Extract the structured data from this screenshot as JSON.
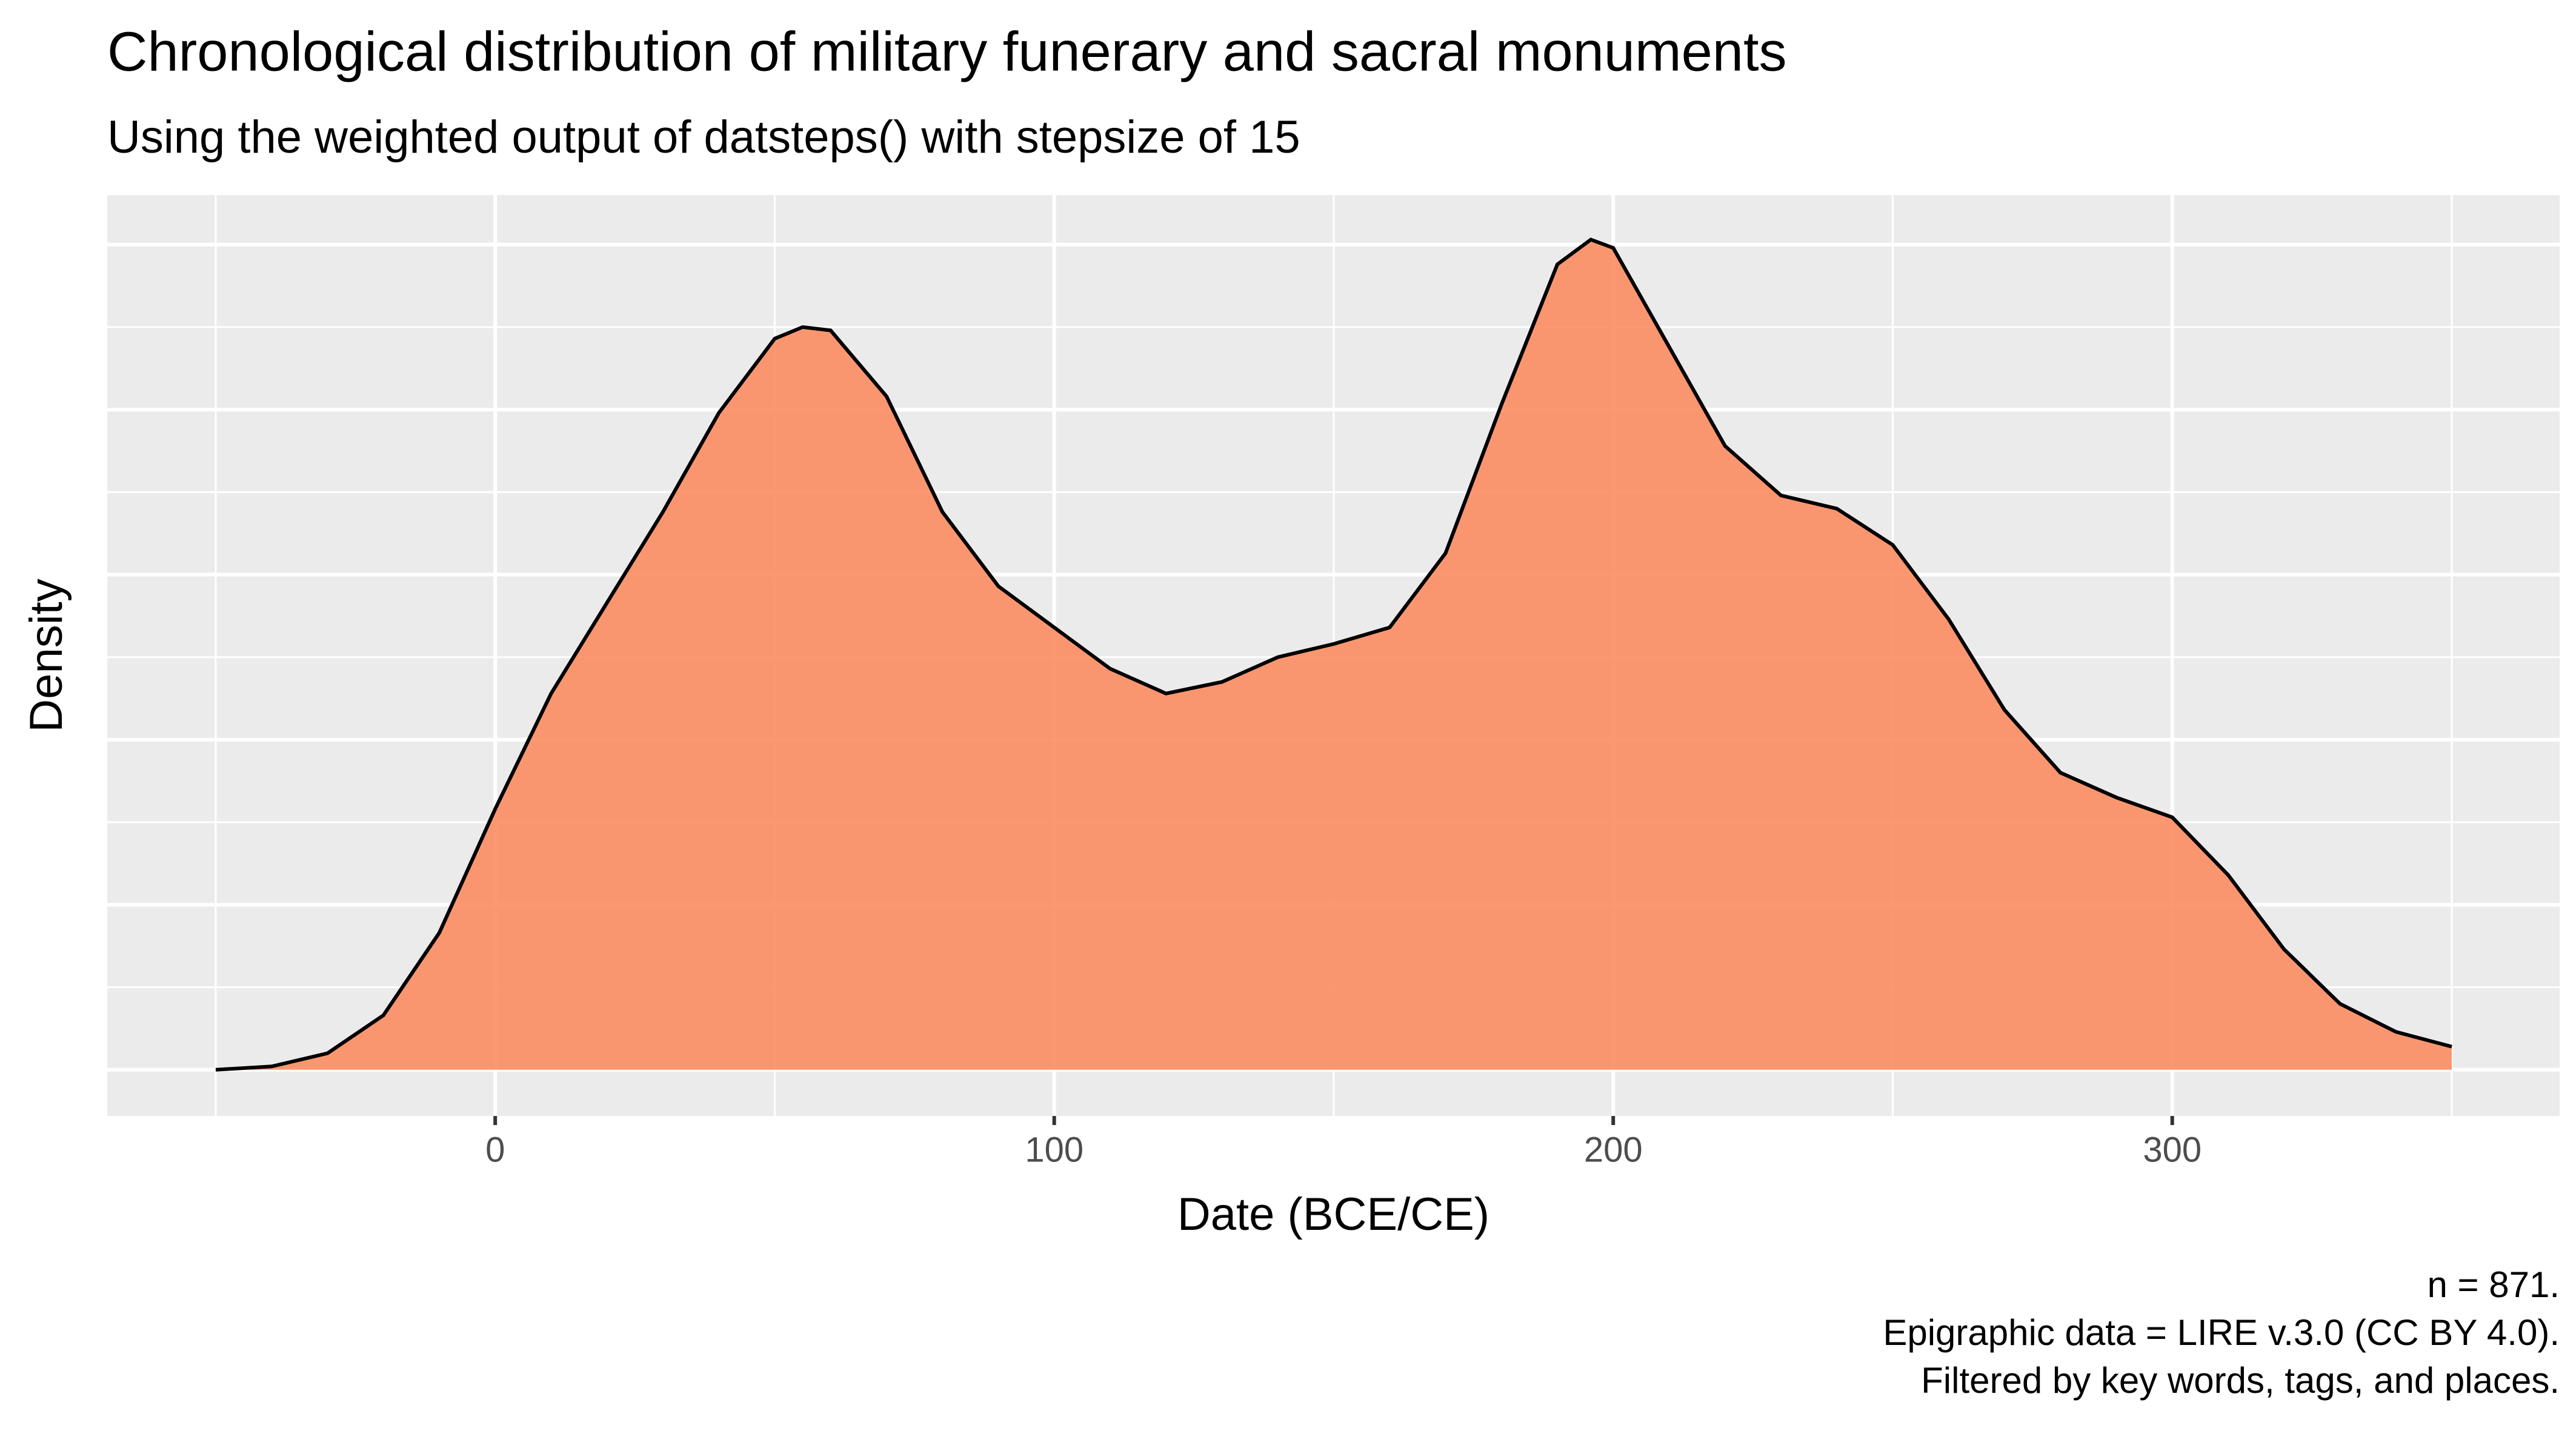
{
  "chart_data": {
    "type": "density",
    "title": "Chronological distribution of military funerary and sacral monuments",
    "subtitle": "Using the weighted output of datsteps() with stepsize of 15",
    "x_label": "Date (BCE/CE)",
    "y_label": "Density",
    "caption": [
      "n = 871.",
      "Epigraphic data = LIRE v.3.0 (CC BY 4.0).",
      "Filtered by key words, tags, and places."
    ],
    "x": [
      -50,
      -40,
      -30,
      -20,
      -10,
      0,
      10,
      20,
      30,
      40,
      50,
      55,
      60,
      70,
      80,
      90,
      100,
      110,
      120,
      130,
      140,
      150,
      160,
      170,
      180,
      190,
      196,
      200,
      210,
      220,
      230,
      240,
      250,
      260,
      270,
      280,
      290,
      300,
      310,
      320,
      330,
      340,
      350
    ],
    "values": [
      0,
      2e-05,
      0.0001,
      0.00033,
      0.00083,
      0.00158,
      0.00228,
      0.00283,
      0.00338,
      0.00398,
      0.00443,
      0.0045,
      0.00448,
      0.00408,
      0.00338,
      0.00293,
      0.00268,
      0.00243,
      0.00228,
      0.00235,
      0.0025,
      0.00258,
      0.00268,
      0.00313,
      0.00403,
      0.00488,
      0.00503,
      0.00498,
      0.00438,
      0.00378,
      0.00348,
      0.0034,
      0.00318,
      0.00273,
      0.00218,
      0.0018,
      0.00165,
      0.00153,
      0.00118,
      0.00073,
      0.0004,
      0.00023,
      0.00014
    ],
    "fill_color": "#fc8d62",
    "line_color": "#000000",
    "xlim": [
      -69.4,
      369.3
    ],
    "ylim": [
      -0.00028,
      0.0053
    ],
    "xticks": [
      0,
      100,
      200,
      300
    ],
    "x_minor_ticks": [
      -50,
      50,
      150,
      250,
      350
    ],
    "yticks": [
      0,
      0.001,
      0.002,
      0.003,
      0.004,
      0.005
    ],
    "y_minor_ticks": [
      0.0005,
      0.0015,
      0.0025,
      0.0035,
      0.0045
    ],
    "grid": true
  }
}
